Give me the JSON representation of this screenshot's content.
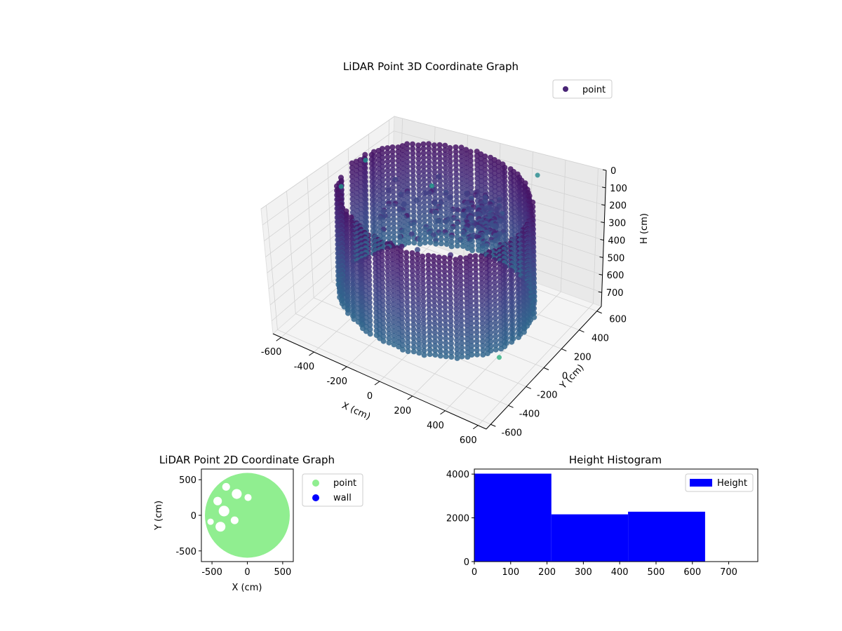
{
  "chart_data": [
    {
      "type": "scatter3d",
      "title": "LiDAR Point 3D Coordinate Graph",
      "xlabel": "X (cm)",
      "ylabel": "Y (cm)",
      "zlabel": "H (cm)",
      "xlim": [
        -650,
        650
      ],
      "ylim": [
        -650,
        650
      ],
      "zlim": [
        780,
        0
      ],
      "x_ticks": [
        -600,
        -400,
        -200,
        0,
        200,
        400,
        600
      ],
      "y_ticks": [
        -600,
        -400,
        -200,
        0,
        200,
        400,
        600
      ],
      "z_ticks": [
        0,
        100,
        200,
        300,
        400,
        500,
        600,
        700
      ],
      "legend": {
        "label": "point",
        "location": "upper-right"
      },
      "colormap": "viridis",
      "grid": true,
      "wall": {
        "radius": 520,
        "height_range": [
          0,
          630
        ],
        "arc_degrees": [
          195,
          540
        ]
      },
      "interior_clusters": [
        {
          "x": 150,
          "y": 250,
          "h": 200,
          "count": 140,
          "spread": 110
        },
        {
          "x": -120,
          "y": 80,
          "h": 190,
          "count": 60,
          "spread": 260
        }
      ],
      "outliers": [
        {
          "x": -640,
          "y": 100,
          "h": 230
        },
        {
          "x": -600,
          "y": 300,
          "h": 150
        },
        {
          "x": -260,
          "y": 420,
          "h": 240
        },
        {
          "x": 560,
          "y": -330,
          "h": 560
        },
        {
          "x": 290,
          "y": 610,
          "h": 70
        }
      ]
    },
    {
      "type": "scatter",
      "title": "LiDAR Point 2D Coordinate Graph",
      "xlabel": "X (cm)",
      "ylabel": "Y (cm)",
      "xlim": [
        -650,
        650
      ],
      "ylim": [
        -650,
        650
      ],
      "x_ticks": [
        -500,
        0,
        500
      ],
      "y_ticks": [
        500,
        0,
        -500
      ],
      "series": [
        {
          "name": "point",
          "color": "#90ee90"
        },
        {
          "name": "wall",
          "color": "#0000ff"
        }
      ],
      "disc": {
        "center": [
          0,
          0
        ],
        "radius": 600
      },
      "holes": [
        {
          "x": -300,
          "y": 400,
          "r": 55
        },
        {
          "x": -150,
          "y": 300,
          "r": 70
        },
        {
          "x": -420,
          "y": 200,
          "r": 60
        },
        {
          "x": -330,
          "y": 60,
          "r": 75
        },
        {
          "x": -520,
          "y": -90,
          "r": 45
        },
        {
          "x": -380,
          "y": -160,
          "r": 70
        },
        {
          "x": -180,
          "y": -70,
          "r": 55
        },
        {
          "x": -570,
          "y": 460,
          "r": 40
        },
        {
          "x": 10,
          "y": 250,
          "r": 50
        }
      ],
      "legend": {
        "location": "outside-right"
      }
    },
    {
      "type": "histogram",
      "title": "Height Histogram",
      "series": [
        {
          "name": "Height",
          "color": "#0000ff"
        }
      ],
      "bins": [
        {
          "start": 0,
          "end": 212,
          "count": 4020
        },
        {
          "start": 212,
          "end": 423,
          "count": 2160
        },
        {
          "start": 423,
          "end": 635,
          "count": 2280
        }
      ],
      "xlim": [
        0,
        780
      ],
      "ylim": [
        0,
        4230
      ],
      "x_ticks": [
        0,
        100,
        200,
        300,
        400,
        500,
        600,
        700
      ],
      "y_ticks": [
        0,
        2000,
        4000
      ],
      "legend": {
        "location": "upper-right"
      }
    }
  ]
}
